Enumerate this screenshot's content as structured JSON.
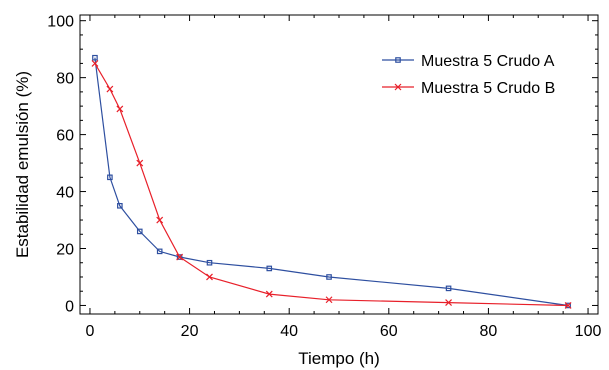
{
  "chart_data": {
    "type": "line",
    "title": "",
    "xlabel": "Tiempo (h)",
    "ylabel": "Estabilidad emulsión (%)",
    "xlim": [
      -2,
      102
    ],
    "ylim": [
      -3,
      102
    ],
    "x_ticks": [
      "0",
      "20",
      "40",
      "60",
      "80",
      "100"
    ],
    "y_ticks": [
      "0",
      "20",
      "40",
      "60",
      "80",
      "100"
    ],
    "grid": false,
    "legend_position": "top-right",
    "series": [
      {
        "name": "Muestra 5 Crudo A",
        "color": "#2e4fa0",
        "marker": "square",
        "x": [
          1,
          4,
          6,
          10,
          14,
          18,
          24,
          36,
          48,
          72,
          96
        ],
        "y": [
          87,
          45,
          35,
          26,
          19,
          17,
          15,
          13,
          10,
          6,
          0
        ]
      },
      {
        "name": "Muestra 5 Crudo B",
        "color": "#e8202a",
        "marker": "x",
        "x": [
          1,
          4,
          6,
          10,
          14,
          18,
          24,
          36,
          48,
          72,
          96
        ],
        "y": [
          85,
          76,
          69,
          50,
          30,
          17,
          10,
          4,
          2,
          1,
          0
        ]
      }
    ]
  }
}
